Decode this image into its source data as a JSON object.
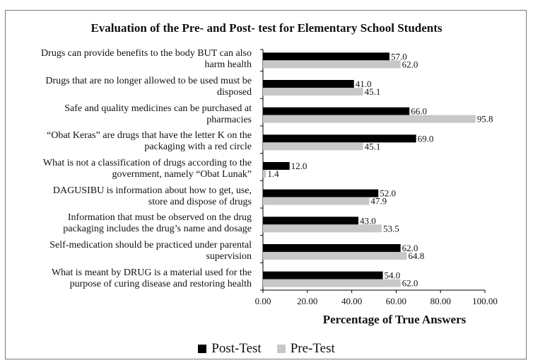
{
  "chart_data": {
    "type": "bar",
    "orientation": "horizontal",
    "title": "Evaluation of the  Pre- and Post- test for Elementary School Students",
    "xlabel": "Percentage of True Answers",
    "ylabel": "",
    "xlim": [
      0,
      100
    ],
    "x_ticks": [
      "0.00",
      "20.00",
      "40.00",
      "60.00",
      "80.00",
      "100.00"
    ],
    "categories": [
      "Drugs can provide benefits to the body BUT can also harm health",
      "Drugs that are no longer allowed to be used must be disposed",
      "Safe and quality medicines can be purchased at pharmacies",
      "“Obat Keras” are drugs that have the letter K on the packaging with a red circle",
      "What is not a classification of drugs according to the government, namely “Obat Lunak”",
      "DAGUSIBU is information about how to get, use, store and dispose of drugs",
      "Information that must be observed on the drug packaging includes the drug’s name and dosage",
      "Self-medication should be practiced under parental supervision",
      "What is meant by DRUG is a material used for the purpose of curing disease and restoring health"
    ],
    "category_lines": [
      [
        "Drugs can provide benefits to the body BUT can also",
        "harm health"
      ],
      [
        "Drugs that are no longer allowed to be used must be",
        "disposed"
      ],
      [
        "Safe and quality medicines can be purchased at",
        "pharmacies"
      ],
      [
        "“Obat Keras” are drugs that have the letter K on the",
        "packaging with a red circle"
      ],
      [
        "What is not a classification of drugs according to the",
        "government, namely “Obat Lunak”"
      ],
      [
        "DAGUSIBU is information about how to get, use,",
        "store and dispose of drugs"
      ],
      [
        "Information that must be observed on the drug",
        "packaging includes the drug’s name and dosage"
      ],
      [
        "Self-medication should be practiced under parental",
        "supervision"
      ],
      [
        "What is meant by DRUG is a material used for the",
        "purpose of curing disease and restoring health"
      ]
    ],
    "series": [
      {
        "name": "Post-Test",
        "color": "#000000",
        "values": [
          57.0,
          41.0,
          66.0,
          69.0,
          12.0,
          52.0,
          43.0,
          62.0,
          54.0
        ],
        "labels": [
          "57.0",
          "41.0",
          "66.0",
          "69.0",
          "12.0",
          "52.0",
          "43.0",
          "62.0",
          "54.0"
        ]
      },
      {
        "name": "Pre-Test",
        "color": "#c8c8c8",
        "values": [
          62.0,
          45.1,
          95.8,
          45.1,
          1.4,
          47.9,
          53.5,
          64.8,
          62.0
        ],
        "labels": [
          "62.0",
          "45.1",
          "95.8",
          "45.1",
          "1.4",
          "47.9",
          "53.5",
          "64.8",
          "62.0"
        ]
      }
    ],
    "grid": false,
    "legend_position": "bottom"
  }
}
